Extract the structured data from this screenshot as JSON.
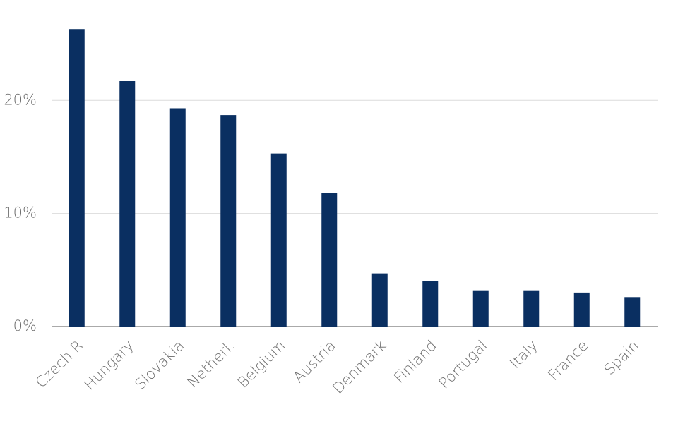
{
  "chart_data": {
    "type": "bar",
    "categories": [
      "Czech R",
      "Hungary",
      "Slovakia",
      "Netherl.",
      "Belgium",
      "Austria",
      "Denmark",
      "Finland",
      "Portugal",
      "Italy",
      "France",
      "Spain"
    ],
    "values": [
      26.3,
      21.7,
      19.3,
      18.7,
      15.3,
      11.8,
      4.7,
      4.0,
      3.2,
      3.2,
      3.0,
      2.6
    ],
    "color": "#0a2f61",
    "ylim": [
      0,
      27
    ],
    "yticks": [
      {
        "value": 0,
        "label": "0%"
      },
      {
        "value": 10,
        "label": "10%"
      },
      {
        "value": 20,
        "label": "20%"
      }
    ],
    "grid": true
  }
}
